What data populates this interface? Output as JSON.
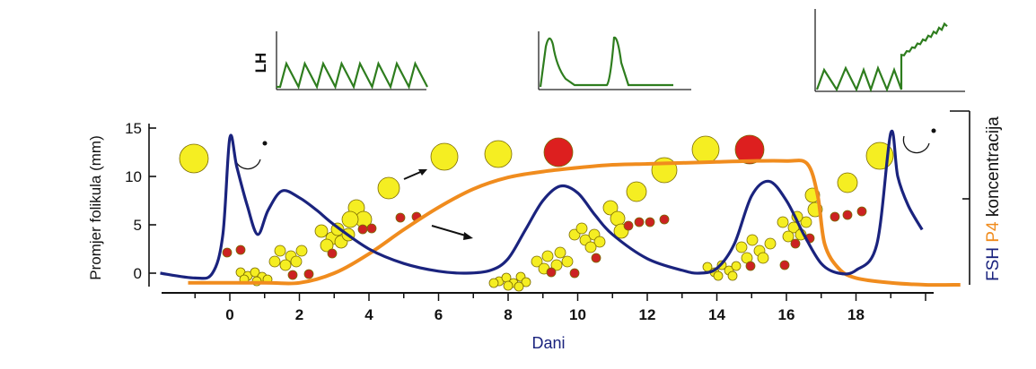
{
  "chart_data": {
    "type": "line",
    "xlabel": "Dani",
    "ylabel": "Promjer folikula (mm)",
    "xlim": [
      -2,
      21
    ],
    "ylim": [
      0,
      15
    ],
    "x_ticks": [
      0,
      2,
      4,
      6,
      8,
      10,
      12,
      14,
      16,
      18
    ],
    "y_ticks": [
      0,
      5,
      10,
      15
    ],
    "right_axis": {
      "segments": [
        {
          "text": "FSH",
          "color": "#1a237e"
        },
        {
          "text": " P4",
          "color": "#f08c1e"
        },
        {
          "text": " koncentracija",
          "color": "#111111"
        }
      ]
    },
    "series": [
      {
        "color": "#1a237e",
        "x": [
          -2,
          -1,
          -0.5,
          -0.2,
          0,
          0.2,
          0.5,
          0.8,
          1.1,
          1.5,
          2,
          2.5,
          3,
          4,
          5,
          6,
          6.8,
          7.5,
          8,
          8.5,
          9,
          9.5,
          10,
          10.5,
          11,
          12,
          13,
          13.5,
          14,
          14.5,
          15,
          15.5,
          16,
          16.5,
          17,
          17.5,
          18,
          18.6,
          19,
          19.2,
          19.5,
          19.9
        ],
        "values": [
          0,
          -0.5,
          0,
          4,
          14,
          11,
          7,
          4,
          6.5,
          8.5,
          7.8,
          6.5,
          5,
          2.5,
          1,
          0.2,
          0,
          0.3,
          1.5,
          4.5,
          7.5,
          9,
          8.3,
          6,
          4,
          1.5,
          0.3,
          0,
          0.5,
          3,
          8,
          9.5,
          7.5,
          4,
          1,
          0,
          0.3,
          3,
          14.5,
          10,
          7,
          4.5
        ]
      },
      {
        "color": "#f08c1e",
        "x": [
          -1.2,
          1,
          2,
          3,
          4,
          5,
          6,
          7,
          8,
          9,
          10,
          11,
          12,
          13,
          14,
          15,
          16,
          16.6,
          16.9,
          17.1,
          17.5,
          18,
          19,
          20,
          21
        ],
        "values": [
          -1,
          -1,
          -1,
          0,
          2,
          4.5,
          6.8,
          8.7,
          9.9,
          10.5,
          10.9,
          11.2,
          11.3,
          11.4,
          11.5,
          11.6,
          11.6,
          11.3,
          8,
          3,
          0.5,
          -0.5,
          -1,
          -1.2,
          -1.2
        ]
      }
    ],
    "annotations": [
      "cycle-1-follicles",
      "cycle-2-follicles",
      "cycle-3-follicles"
    ],
    "insets": [
      {
        "label": "LH",
        "pattern": "pulsatile-regular"
      },
      {
        "label": "",
        "pattern": "two-peaks"
      },
      {
        "label": "",
        "pattern": "pulsatile-rising"
      }
    ],
    "follicle_colors": {
      "small": "#f5ee22",
      "medium": "#f5ee22",
      "large": "#f5ee22",
      "ovulatory": "#dd1f1f",
      "atretic": "#cc2222"
    }
  }
}
